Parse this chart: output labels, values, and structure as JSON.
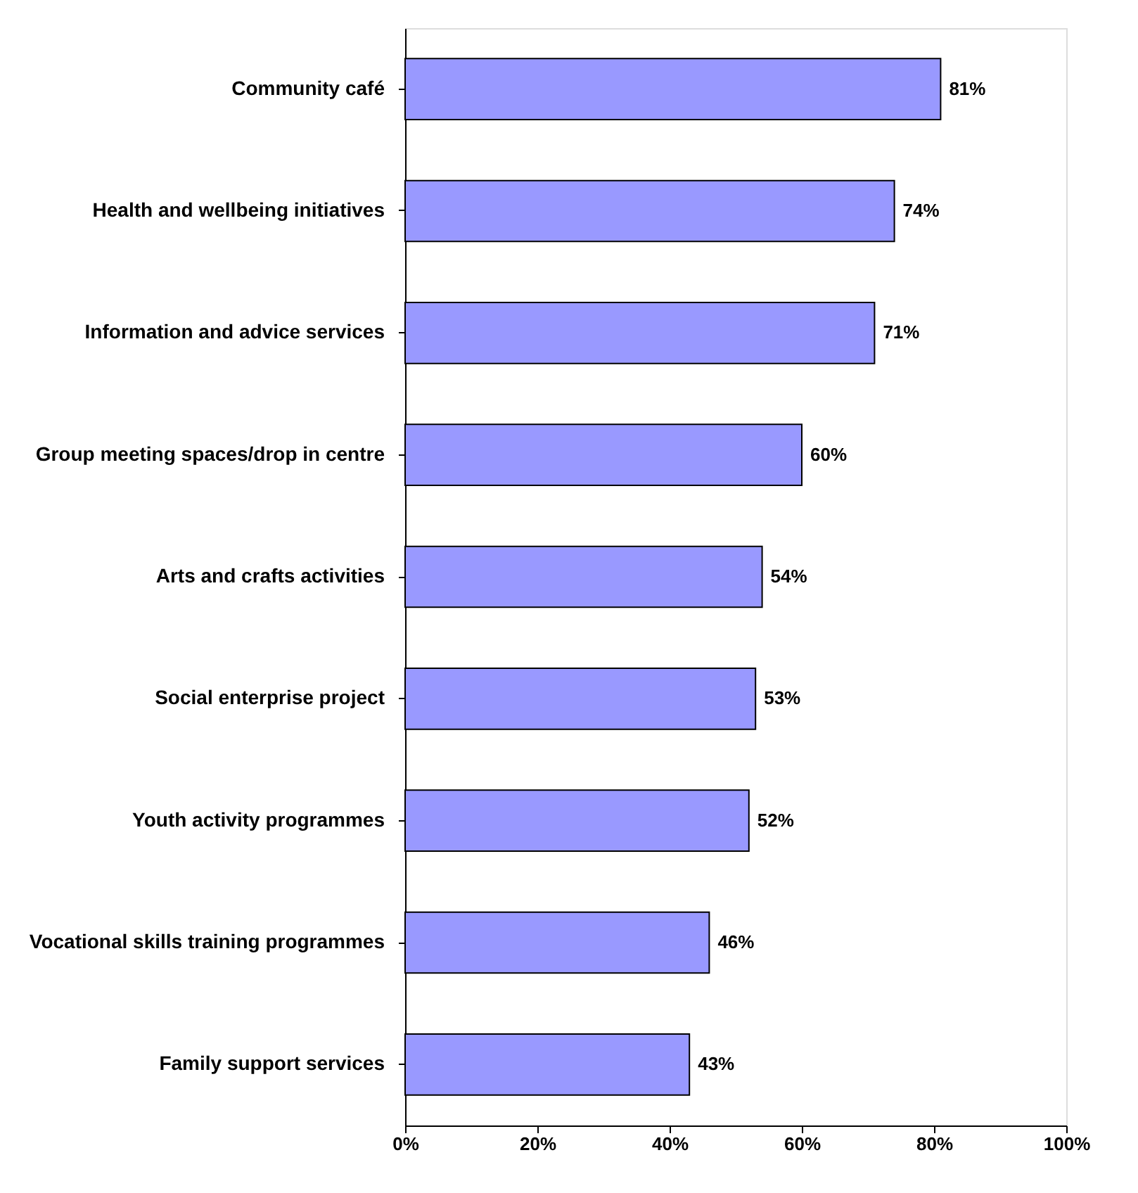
{
  "chart_data": {
    "type": "bar",
    "orientation": "horizontal",
    "categories": [
      "Community café",
      "Health and wellbeing initiatives",
      "Information and advice services",
      "Group meeting spaces/drop in centre",
      "Arts and crafts activities",
      "Social enterprise project",
      "Youth activity programmes",
      "Vocational skills training programmes",
      "Family support services"
    ],
    "values": [
      81,
      74,
      71,
      60,
      54,
      53,
      52,
      46,
      43
    ],
    "value_labels": [
      "81%",
      "74%",
      "71%",
      "60%",
      "54%",
      "53%",
      "52%",
      "46%",
      "43%"
    ],
    "color": "#9999ff",
    "xlim": [
      0,
      100
    ],
    "xticks": [
      {
        "value": 0,
        "label": "0%"
      },
      {
        "value": 20,
        "label": "20%"
      },
      {
        "value": 40,
        "label": "40%"
      },
      {
        "value": 60,
        "label": "60%"
      },
      {
        "value": 80,
        "label": "80%"
      },
      {
        "value": 100,
        "label": "100%"
      }
    ],
    "grid": false
  }
}
